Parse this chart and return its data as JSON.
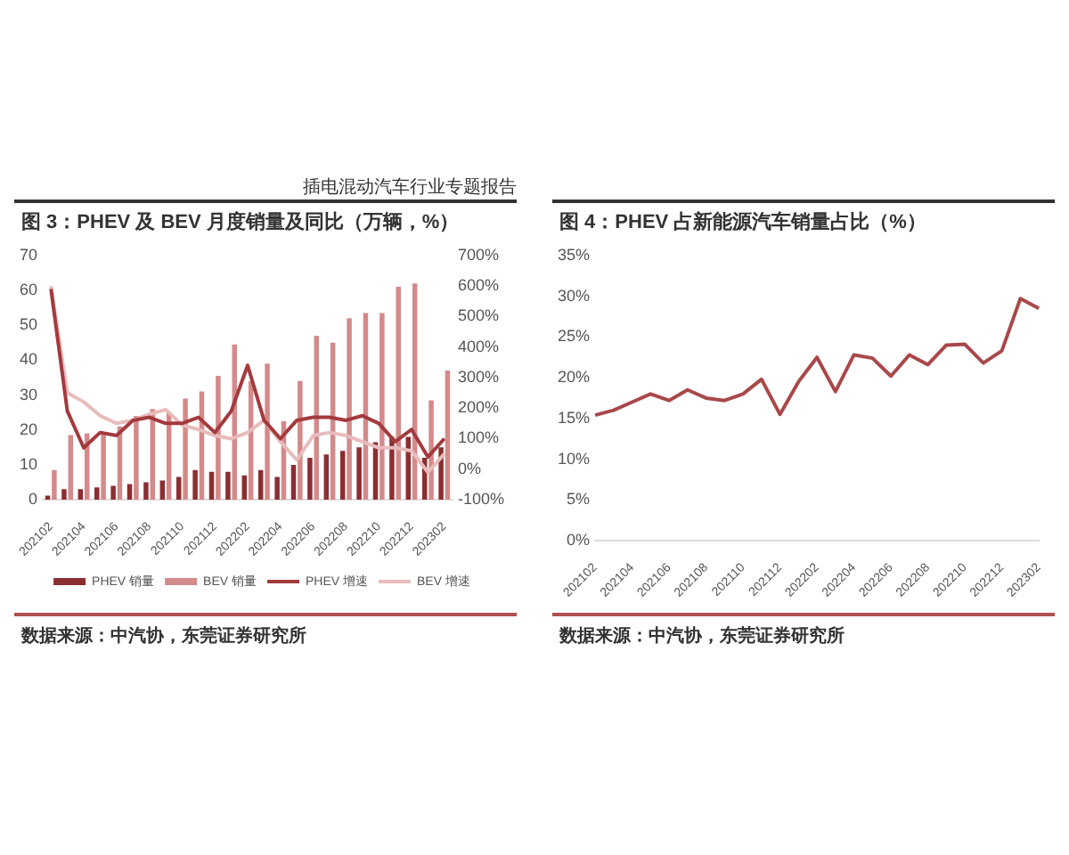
{
  "chart_data": [
    {
      "type": "bar",
      "title": "图 3：PHEV 及 BEV 月度销量及同比（万辆，%）",
      "subtitle": "插电混动汽车行业专题报告",
      "categories": [
        "202102",
        null,
        "202104",
        null,
        "202106",
        null,
        "202108",
        null,
        "202110",
        null,
        "202112",
        null,
        "202202",
        null,
        "202204",
        null,
        "202206",
        null,
        "202208",
        null,
        "202210",
        null,
        "202212",
        null,
        "202302"
      ],
      "series": [
        {
          "name": "PHEV 销量",
          "type": "bar",
          "color": "#8b2e32",
          "values": [
            1.2,
            3,
            3,
            3.5,
            4,
            4.5,
            5,
            5.5,
            6.5,
            8.5,
            8,
            8,
            7,
            8.5,
            6.5,
            10,
            12,
            13,
            14,
            15,
            16.5,
            18,
            18,
            12,
            15
          ]
        },
        {
          "name": "BEV 销量",
          "type": "bar",
          "color": "#d48a8a",
          "values": [
            8.5,
            18.5,
            19,
            19,
            21,
            24,
            26,
            25,
            29,
            31,
            35.5,
            44.5,
            34,
            39,
            22.5,
            34,
            47,
            45,
            52,
            53.5,
            53.5,
            61,
            62,
            28.5,
            37
          ]
        },
        {
          "name": "PHEV 增速",
          "type": "line",
          "axis": "y2",
          "color": "#a33a3e",
          "values": [
            590,
            190,
            70,
            120,
            110,
            160,
            170,
            150,
            150,
            170,
            120,
            190,
            340,
            160,
            100,
            160,
            170,
            170,
            160,
            175,
            150,
            90,
            130,
            40,
            100
          ]
        },
        {
          "name": "BEV 增速",
          "type": "line",
          "axis": "y2",
          "color": "#e8bcbc",
          "values": [
            600,
            250,
            220,
            175,
            150,
            160,
            180,
            195,
            145,
            130,
            110,
            100,
            120,
            160,
            90,
            30,
            110,
            120,
            110,
            90,
            70,
            70,
            60,
            -10,
            50
          ]
        }
      ],
      "ylim": [
        0,
        70
      ],
      "yticks": [
        0,
        10,
        20,
        30,
        40,
        50,
        60,
        70
      ],
      "y2lim": [
        -100,
        700
      ],
      "y2ticks": [
        {
          "value": -100,
          "label": "-100%"
        },
        {
          "value": 0,
          "label": "0%"
        },
        {
          "value": 100,
          "label": "100%"
        },
        {
          "value": 200,
          "label": "200%"
        },
        {
          "value": 300,
          "label": "300%"
        },
        {
          "value": 400,
          "label": "400%"
        },
        {
          "value": 500,
          "label": "500%"
        },
        {
          "value": 600,
          "label": "600%"
        },
        {
          "value": 700,
          "label": "700%"
        }
      ],
      "grid": false,
      "legend": "bottom",
      "marker": "none",
      "annotations": [
        "数据来源：中汽协，东莞证券研究所"
      ]
    },
    {
      "type": "line",
      "title": "图 4：PHEV 占新能源汽车销量占比（%）",
      "categories": [
        "202102",
        null,
        "202104",
        null,
        "202106",
        null,
        "202108",
        null,
        "202110",
        null,
        "202112",
        null,
        "202202",
        null,
        "202204",
        null,
        "202206",
        null,
        "202208",
        null,
        "202210",
        null,
        "202212",
        null,
        "202302"
      ],
      "series": [
        {
          "color": "#a8484a",
          "values": [
            15.4,
            16,
            17,
            18,
            17.2,
            18.5,
            17.5,
            17.2,
            18,
            19.8,
            15.5,
            19.5,
            22.5,
            18.3,
            22.8,
            22.4,
            20.2,
            22.8,
            21.6,
            24,
            24.1,
            21.8,
            23.3,
            29.7,
            28.5
          ]
        }
      ],
      "ylim": [
        0,
        35
      ],
      "yticks": [
        {
          "value": 0,
          "label": "0%"
        },
        {
          "value": 5,
          "label": "5%"
        },
        {
          "value": 10,
          "label": "10%"
        },
        {
          "value": 15,
          "label": "15%"
        },
        {
          "value": 20,
          "label": "20%"
        },
        {
          "value": 25,
          "label": "25%"
        },
        {
          "value": 30,
          "label": "30%"
        },
        {
          "value": 35,
          "label": "35%"
        }
      ],
      "grid": false,
      "legend": false,
      "marker": "none",
      "annotations": [
        "数据来源：中汽协，东莞证券研究所"
      ]
    }
  ]
}
